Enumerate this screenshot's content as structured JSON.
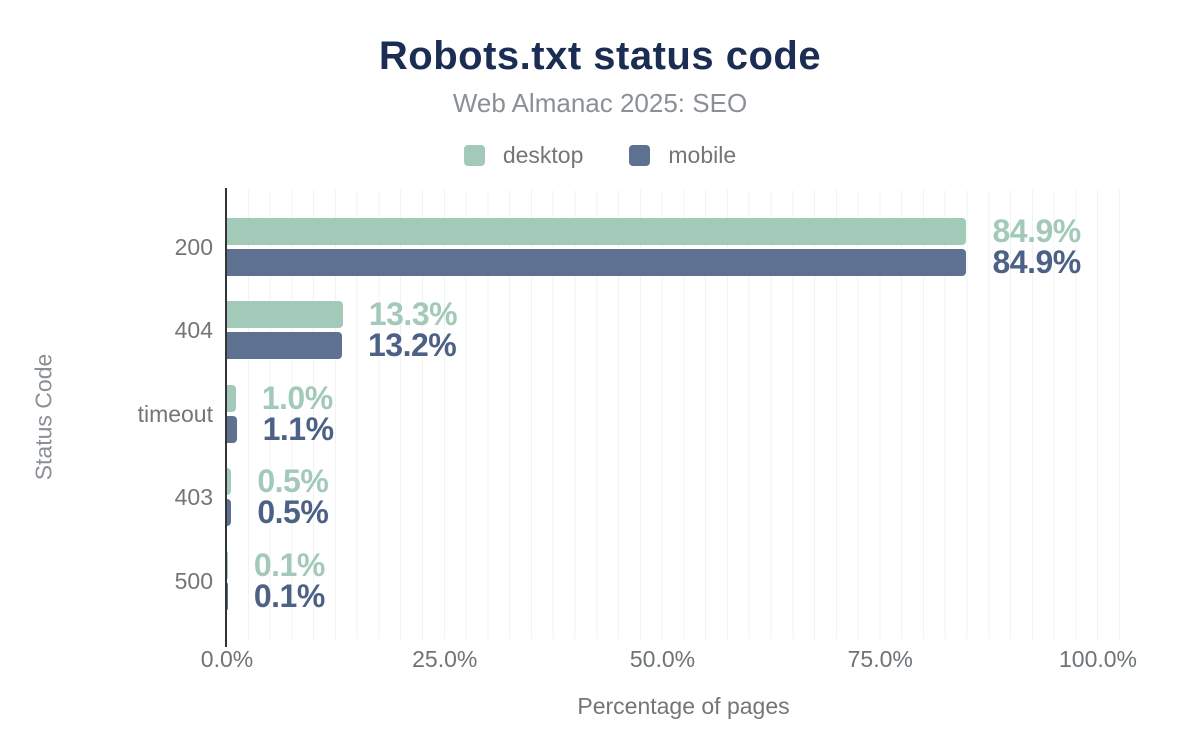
{
  "header": {
    "title": "Robots.txt status code",
    "subtitle": "Web Almanac 2025: SEO"
  },
  "legend": {
    "items": [
      {
        "label": "desktop",
        "color": "#a3c9b8"
      },
      {
        "label": "mobile",
        "color": "#5f7190"
      }
    ]
  },
  "chart_data": {
    "type": "bar",
    "orientation": "horizontal",
    "title": "Robots.txt status code",
    "subtitle": "Web Almanac 2025: SEO",
    "categories": [
      "200",
      "404",
      "timeout",
      "403",
      "500"
    ],
    "series": [
      {
        "name": "desktop",
        "color": "#a3c9b8",
        "label_color": "#a3c9b8",
        "values": [
          84.9,
          13.3,
          1.0,
          0.5,
          0.1
        ],
        "labels": [
          "84.9%",
          "13.3%",
          "1.0%",
          "0.5%",
          "0.1%"
        ]
      },
      {
        "name": "mobile",
        "color": "#5f7190",
        "label_color": "#4d6186",
        "values": [
          84.9,
          13.2,
          1.1,
          0.5,
          0.1
        ],
        "labels": [
          "84.9%",
          "13.2%",
          "1.1%",
          "0.5%",
          "0.1%"
        ]
      }
    ],
    "xlabel": "Percentage of pages",
    "ylabel": "Status Code",
    "xlim": [
      0,
      100
    ],
    "x_ticks": [
      {
        "label": "0.0%",
        "value": 0
      },
      {
        "label": "25.0%",
        "value": 25
      },
      {
        "label": "50.0%",
        "value": 50
      },
      {
        "label": "75.0%",
        "value": 75
      },
      {
        "label": "100.0%",
        "value": 100
      }
    ],
    "grid": {
      "vertical": true,
      "minor_step_percent": 2.5
    },
    "legend_position": "top"
  },
  "colors": {
    "title": "#1c2d54",
    "subtitle": "#8a9096",
    "axis_text": "#6d7377",
    "axis_line": "#313539",
    "gridline": "#f1f3f3",
    "background": "#ffffff"
  }
}
